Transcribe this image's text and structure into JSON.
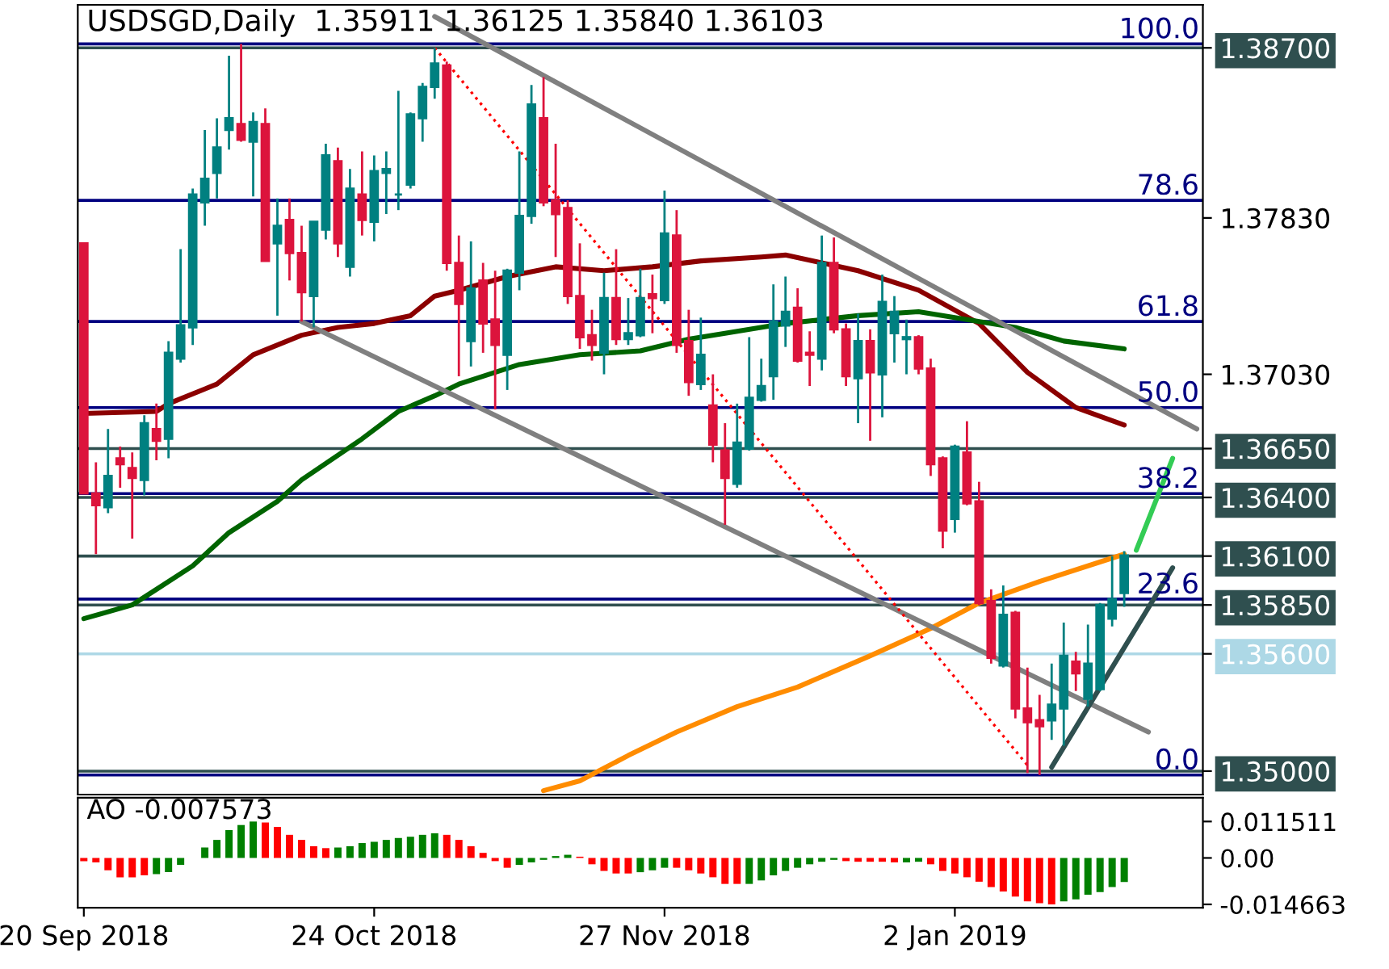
{
  "chart_data": [
    {
      "type": "candlestick",
      "title": "USDSGD,Daily  1.35911 1.36125 1.35840 1.36103",
      "tick_labels": "y",
      "categories": [
        null,
        null,
        null,
        null,
        null,
        null,
        null,
        null,
        null,
        null,
        null,
        null,
        null,
        null,
        null,
        null,
        null,
        null,
        null,
        null,
        null,
        null,
        null,
        null,
        null,
        null,
        null,
        null,
        null,
        null,
        null,
        null,
        null,
        null,
        null,
        null,
        null,
        null,
        null,
        null,
        null,
        null,
        null,
        null,
        null,
        null,
        null,
        null,
        null,
        null,
        null,
        null,
        null,
        null,
        null,
        null,
        null,
        null,
        null,
        null,
        null,
        null,
        null,
        null,
        null,
        null,
        null,
        null,
        null,
        null,
        null,
        null,
        null,
        null,
        null,
        null,
        null,
        null,
        null,
        null,
        null,
        null,
        null,
        null,
        null,
        null,
        null,
        null,
        null,
        null,
        null,
        null,
        null
      ],
      "ohlc": [
        [
          1.377,
          1.377,
          1.3642,
          1.3642
        ],
        [
          1.3642,
          1.3658,
          1.3611,
          1.3636
        ],
        [
          1.3635,
          1.3675,
          1.3632,
          1.3651
        ],
        [
          1.366,
          1.3666,
          1.3645,
          1.3657
        ],
        [
          1.3655,
          1.3663,
          1.3619,
          1.365
        ],
        [
          1.3649,
          1.3682,
          1.3641,
          1.3678
        ],
        [
          1.3675,
          1.3688,
          1.3659,
          1.3669
        ],
        [
          1.367,
          1.372,
          1.366,
          1.3714
        ],
        [
          1.3711,
          1.3767,
          1.3709,
          1.3728
        ],
        [
          1.3727,
          1.3798,
          1.3718,
          1.3795
        ],
        [
          1.3791,
          1.3828,
          1.3779,
          1.3803
        ],
        [
          1.3806,
          1.3834,
          1.3793,
          1.3819
        ],
        [
          1.3828,
          1.3866,
          1.3818,
          1.3834
        ],
        [
          1.3831,
          1.3872,
          1.3822,
          1.3823
        ],
        [
          1.3822,
          1.3837,
          1.3794,
          1.3832
        ],
        [
          1.3831,
          1.3839,
          1.3761,
          1.3761
        ],
        [
          1.377,
          1.3793,
          1.3733,
          1.3779
        ],
        [
          1.3782,
          1.3793,
          1.3751,
          1.3765
        ],
        [
          1.3765,
          1.3779,
          1.373,
          1.3745
        ],
        [
          1.3743,
          1.3781,
          1.3727,
          1.3781
        ],
        [
          1.3777,
          1.3821,
          1.3772,
          1.3815
        ],
        [
          1.3812,
          1.3819,
          1.3763,
          1.377
        ],
        [
          1.3758,
          1.3808,
          1.3753,
          1.3798
        ],
        [
          1.3795,
          1.3817,
          1.3774,
          1.3782
        ],
        [
          1.3781,
          1.3815,
          1.3771,
          1.3807
        ],
        [
          1.3806,
          1.3817,
          1.3785,
          1.3808
        ],
        [
          1.3795,
          1.3848,
          1.3787,
          1.3795
        ],
        [
          1.38,
          1.3837,
          1.3798,
          1.3836
        ],
        [
          1.3834,
          1.3852,
          1.3822,
          1.385
        ],
        [
          1.385,
          1.387,
          1.3844,
          1.3862
        ],
        [
          1.3861,
          1.3863,
          1.3756,
          1.376
        ],
        [
          1.376,
          1.3774,
          1.3702,
          1.3739
        ],
        [
          1.372,
          1.3771,
          1.3707,
          1.3747
        ],
        [
          1.3751,
          1.376,
          1.3714,
          1.3729
        ],
        [
          1.3731,
          1.3756,
          1.3685,
          1.3718
        ],
        [
          1.3713,
          1.3757,
          1.3695,
          1.3756
        ],
        [
          1.3755,
          1.3817,
          1.3746,
          1.3784
        ],
        [
          1.3784,
          1.3851,
          1.378,
          1.3841
        ],
        [
          1.3834,
          1.3855,
          1.3789,
          1.3791
        ],
        [
          1.3792,
          1.3821,
          1.3763,
          1.3785
        ],
        [
          1.3788,
          1.3792,
          1.3739,
          1.3743
        ],
        [
          1.3743,
          1.377,
          1.3716,
          1.3722
        ],
        [
          1.3723,
          1.3736,
          1.371,
          1.3718
        ],
        [
          1.3714,
          1.3755,
          1.3703,
          1.3742
        ],
        [
          1.3742,
          1.3767,
          1.3718,
          1.3721
        ],
        [
          1.3721,
          1.3742,
          1.3718,
          1.3724
        ],
        [
          1.3723,
          1.3757,
          1.3722,
          1.3742
        ],
        [
          1.3744,
          1.3754,
          1.3724,
          1.3742
        ],
        [
          1.3741,
          1.3797,
          1.3739,
          1.3775
        ],
        [
          1.3774,
          1.3787,
          1.3714,
          1.3718
        ],
        [
          1.372,
          1.3736,
          1.3692,
          1.3699
        ],
        [
          1.3698,
          1.3732,
          1.3695,
          1.3713
        ],
        [
          1.3687,
          1.3703,
          1.3658,
          1.3667
        ],
        [
          1.3664,
          1.3678,
          1.3626,
          1.365
        ],
        [
          1.3647,
          1.3688,
          1.3645,
          1.3668
        ],
        [
          1.3665,
          1.3722,
          1.3664,
          1.3691
        ],
        [
          1.369,
          1.3711,
          1.3689,
          1.3697
        ],
        [
          1.3702,
          1.3749,
          1.369,
          1.373
        ],
        [
          1.3728,
          1.3753,
          1.3717,
          1.3735
        ],
        [
          1.3737,
          1.3747,
          1.3709,
          1.371
        ],
        [
          1.3714,
          1.3725,
          1.3697,
          1.3713
        ],
        [
          1.3711,
          1.3774,
          1.3705,
          1.376
        ],
        [
          1.376,
          1.3773,
          1.3724,
          1.3726
        ],
        [
          1.3726,
          1.3729,
          1.3697,
          1.3702
        ],
        [
          1.3701,
          1.3734,
          1.3678,
          1.372
        ],
        [
          1.372,
          1.3726,
          1.3669,
          1.3704
        ],
        [
          1.3703,
          1.3754,
          1.3681,
          1.374
        ],
        [
          1.3724,
          1.3743,
          1.3709,
          1.3735
        ],
        [
          1.3721,
          1.3731,
          1.3703,
          1.3722
        ],
        [
          1.3722,
          1.3723,
          1.3703,
          1.3706
        ],
        [
          1.3706,
          1.3711,
          1.3651,
          1.3657
        ],
        [
          1.366,
          1.3661,
          1.3614,
          1.3623
        ],
        [
          1.3629,
          1.3667,
          1.3622,
          1.3666
        ],
        [
          1.3663,
          1.3679,
          1.3636,
          1.3637
        ],
        [
          1.3638,
          1.3648,
          1.3585,
          1.3586
        ],
        [
          1.3587,
          1.3593,
          1.3555,
          1.3558
        ],
        [
          1.3554,
          1.3595,
          1.3553,
          1.358
        ],
        [
          1.3581,
          1.3582,
          1.3527,
          1.3532
        ],
        [
          1.3532,
          1.3553,
          1.3499,
          1.3525
        ],
        [
          1.3526,
          1.3539,
          1.3498,
          1.3523
        ],
        [
          1.3526,
          1.3555,
          1.3516,
          1.3534
        ],
        [
          1.3532,
          1.3576,
          1.3513,
          1.3559
        ],
        [
          1.3556,
          1.3561,
          1.3541,
          1.355
        ],
        [
          1.3537,
          1.3575,
          1.3533,
          1.3555
        ],
        [
          1.3542,
          1.3586,
          1.3541,
          1.3585
        ],
        [
          1.3578,
          1.361,
          1.3574,
          1.3588
        ],
        [
          1.35911,
          1.36125,
          1.3584,
          1.36103
        ],
        null,
        null,
        null,
        null,
        null,
        null
      ],
      "colors": [
        "#dc143c",
        "#dc143c",
        "#008080",
        "#dc143c",
        "#dc143c",
        "#008080",
        "#dc143c",
        "#008080",
        "#008080",
        "#008080",
        "#008080",
        "#008080",
        "#008080",
        "#dc143c",
        "#008080",
        "#dc143c",
        "#008080",
        "#dc143c",
        "#dc143c",
        "#008080",
        "#008080",
        "#dc143c",
        "#008080",
        "#dc143c",
        "#008080",
        "#008080",
        "#008080",
        "#008080",
        "#008080",
        "#008080",
        "#dc143c",
        "#dc143c",
        "#008080",
        "#dc143c",
        "#dc143c",
        "#008080",
        "#008080",
        "#008080",
        "#dc143c",
        "#dc143c",
        "#dc143c",
        "#dc143c",
        "#dc143c",
        "#008080",
        "#dc143c",
        "#008080",
        "#008080",
        "#dc143c",
        "#008080",
        "#dc143c",
        "#dc143c",
        "#008080",
        "#dc143c",
        "#dc143c",
        "#008080",
        "#008080",
        "#008080",
        "#008080",
        "#008080",
        "#dc143c",
        "#dc143c",
        "#008080",
        "#dc143c",
        "#dc143c",
        "#008080",
        "#dc143c",
        "#008080",
        "#008080",
        "#008080",
        "#dc143c",
        "#dc143c",
        "#dc143c",
        "#008080",
        "#dc143c",
        "#dc143c",
        "#dc143c",
        "#008080",
        "#dc143c",
        "#dc143c",
        "#dc143c",
        "#008080",
        "#008080",
        "#dc143c",
        "#008080",
        "#008080",
        "#008080",
        "#008080",
        null,
        null,
        null,
        null,
        null,
        null
      ],
      "series": [
        {
          "type": "line",
          "color": "#8b0000",
          "values": [
            1.3683,
            null,
            null,
            null,
            null,
            null,
            1.3684,
            1.3688,
            null,
            null,
            null,
            1.3698,
            null,
            null,
            1.3713,
            null,
            null,
            null,
            1.3723,
            null,
            null,
            1.3727,
            null,
            null,
            1.3729,
            null,
            null,
            1.3733,
            null,
            1.3743,
            null,
            1.3746,
            null,
            null,
            null,
            1.3753,
            null,
            null,
            null,
            1.3758,
            null,
            null,
            null,
            1.3756,
            null,
            null,
            null,
            1.3758,
            null,
            null,
            null,
            1.3761,
            null,
            null,
            null,
            null,
            1.3763,
            null,
            1.3764,
            null,
            null,
            1.376,
            null,
            null,
            1.3756,
            null,
            null,
            null,
            null,
            1.3746,
            null,
            null,
            null,
            null,
            1.3729,
            null,
            null,
            null,
            1.3704,
            null,
            null,
            null,
            1.3686,
            null,
            null,
            null,
            1.3677,
            null,
            null,
            null,
            null,
            null,
            null
          ]
        },
        {
          "type": "line",
          "color": "#006400",
          "values": [
            1.3578,
            null,
            null,
            null,
            1.3585,
            null,
            1.3593,
            null,
            null,
            1.3605,
            null,
            null,
            1.3622,
            null,
            null,
            null,
            1.3638,
            null,
            1.3649,
            null,
            null,
            null,
            null,
            1.367,
            null,
            null,
            1.3684,
            null,
            null,
            1.3692,
            null,
            1.3698,
            null,
            null,
            null,
            null,
            1.3708,
            null,
            null,
            null,
            null,
            1.3713,
            null,
            null,
            null,
            null,
            1.3715,
            null,
            null,
            null,
            1.3721,
            null,
            null,
            1.3724,
            null,
            null,
            null,
            null,
            1.3729,
            null,
            null,
            null,
            null,
            null,
            1.3733,
            null,
            null,
            null,
            null,
            1.3735,
            null,
            null,
            null,
            1.3731,
            null,
            null,
            null,
            1.3727,
            null,
            null,
            null,
            1.372,
            null,
            null,
            null,
            null,
            1.3716,
            null,
            null,
            null,
            null,
            null,
            null
          ]
        },
        {
          "type": "line",
          "color": "#ff8c00",
          "values": [
            null,
            null,
            null,
            null,
            null,
            null,
            null,
            null,
            null,
            null,
            null,
            null,
            null,
            null,
            null,
            null,
            null,
            null,
            null,
            null,
            null,
            null,
            null,
            null,
            null,
            null,
            null,
            null,
            null,
            null,
            null,
            null,
            null,
            null,
            null,
            null,
            null,
            null,
            1.349,
            null,
            null,
            1.3495,
            null,
            null,
            null,
            1.3508,
            null,
            null,
            null,
            1.352,
            null,
            null,
            null,
            null,
            1.3533,
            null,
            null,
            null,
            null,
            1.3543,
            null,
            null,
            null,
            null,
            null,
            1.3559,
            null,
            null,
            null,
            null,
            1.3573,
            null,
            null,
            null,
            1.3586,
            null,
            null,
            null,
            null,
            1.3597,
            null,
            null,
            null,
            null,
            null,
            null,
            1.3611,
            null,
            null,
            null,
            null,
            null,
            null
          ]
        },
        {
          "type": "line",
          "color": "#808080",
          "values": [
            null,
            null,
            null,
            null,
            null,
            null,
            null,
            null,
            null,
            null,
            null,
            null,
            null,
            null,
            null,
            null,
            null,
            null,
            null,
            null,
            null,
            null,
            null,
            null,
            null,
            null,
            null,
            null,
            null,
            1.3886,
            null,
            null,
            null,
            null,
            null,
            null,
            null,
            null,
            null,
            null,
            null,
            null,
            null,
            null,
            null,
            null,
            null,
            null,
            null,
            null,
            null,
            null,
            null,
            null,
            null,
            null,
            null,
            null,
            null,
            null,
            null,
            null,
            null,
            null,
            null,
            null,
            null,
            null,
            null,
            null,
            null,
            null,
            null,
            null,
            null,
            null,
            null,
            null,
            null,
            null,
            null,
            null,
            null,
            null,
            null,
            null,
            null,
            null,
            null,
            null,
            null,
            null,
            1.3675
          ]
        },
        {
          "type": "line",
          "color": "#808080",
          "values": [
            null,
            null,
            null,
            null,
            null,
            null,
            null,
            null,
            null,
            null,
            null,
            null,
            null,
            null,
            null,
            null,
            null,
            null,
            1.373,
            null,
            null,
            null,
            null,
            null,
            null,
            null,
            null,
            null,
            null,
            null,
            null,
            null,
            null,
            null,
            null,
            null,
            null,
            null,
            null,
            null,
            null,
            null,
            null,
            null,
            null,
            null,
            null,
            null,
            null,
            null,
            null,
            null,
            null,
            null,
            null,
            null,
            null,
            null,
            null,
            null,
            null,
            null,
            null,
            null,
            null,
            null,
            null,
            null,
            null,
            null,
            null,
            null,
            null,
            null,
            null,
            null,
            null,
            null,
            null,
            null,
            null,
            null,
            null,
            null,
            null,
            null,
            null,
            null,
            1.352,
            null,
            null,
            null,
            null
          ]
        },
        {
          "type": "line",
          "color": "#2f4f4f",
          "values": [
            null,
            null,
            null,
            null,
            null,
            null,
            null,
            null,
            null,
            null,
            null,
            null,
            null,
            null,
            null,
            null,
            null,
            null,
            null,
            null,
            null,
            null,
            null,
            null,
            null,
            null,
            null,
            null,
            null,
            null,
            null,
            null,
            null,
            null,
            null,
            null,
            null,
            null,
            null,
            null,
            null,
            null,
            null,
            null,
            null,
            null,
            null,
            null,
            null,
            null,
            null,
            null,
            null,
            null,
            null,
            null,
            null,
            null,
            null,
            null,
            null,
            null,
            null,
            null,
            null,
            null,
            null,
            null,
            null,
            null,
            null,
            null,
            null,
            null,
            null,
            null,
            null,
            null,
            null,
            null,
            1.3502,
            null,
            null,
            null,
            null,
            null,
            null,
            null,
            null,
            null,
            1.3604,
            null,
            null
          ]
        },
        {
          "type": "line",
          "color": "#33cc55",
          "values": [
            null,
            null,
            null,
            null,
            null,
            null,
            null,
            null,
            null,
            null,
            null,
            null,
            null,
            null,
            null,
            null,
            null,
            null,
            null,
            null,
            null,
            null,
            null,
            null,
            null,
            null,
            null,
            null,
            null,
            null,
            null,
            null,
            null,
            null,
            null,
            null,
            null,
            null,
            null,
            null,
            null,
            null,
            null,
            null,
            null,
            null,
            null,
            null,
            null,
            null,
            null,
            null,
            null,
            null,
            null,
            null,
            null,
            null,
            null,
            null,
            null,
            null,
            null,
            null,
            null,
            null,
            null,
            null,
            null,
            null,
            null,
            null,
            null,
            null,
            null,
            null,
            null,
            null,
            null,
            null,
            null,
            null,
            null,
            null,
            null,
            null,
            null,
            1.3613,
            null,
            null,
            1.366,
            null,
            null
          ]
        },
        {
          "type": "line",
          "color": "#ff0000",
          "line_style": "dotted",
          "values": [
            null,
            null,
            null,
            null,
            null,
            null,
            null,
            null,
            null,
            null,
            null,
            null,
            null,
            null,
            null,
            null,
            null,
            null,
            null,
            null,
            null,
            null,
            null,
            null,
            null,
            null,
            null,
            null,
            null,
            1.387,
            null,
            null,
            null,
            null,
            null,
            null,
            null,
            null,
            null,
            null,
            null,
            null,
            null,
            null,
            null,
            null,
            null,
            null,
            null,
            null,
            null,
            null,
            null,
            null,
            null,
            null,
            null,
            null,
            null,
            null,
            null,
            null,
            null,
            null,
            null,
            null,
            null,
            null,
            null,
            null,
            null,
            null,
            null,
            null,
            null,
            null,
            null,
            null,
            1.3503,
            null,
            null,
            null,
            null,
            null,
            null,
            null,
            null,
            null,
            null,
            null,
            null,
            null,
            null
          ]
        }
      ],
      "ref_lines": [
        {
          "axis": "y",
          "value": 1.387,
          "color": "#2f4f4f"
        },
        {
          "axis": "y",
          "value": 1.3665,
          "color": "#2f4f4f"
        },
        {
          "axis": "y",
          "value": 1.364,
          "color": "#2f4f4f"
        },
        {
          "axis": "y",
          "value": 1.361,
          "color": "#2f4f4f"
        },
        {
          "axis": "y",
          "value": 1.3585,
          "color": "#2f4f4f"
        },
        {
          "axis": "y",
          "value": 1.356,
          "color": "#add8e6"
        },
        {
          "axis": "y",
          "value": 1.35,
          "color": "#2f4f4f"
        },
        {
          "axis": "y",
          "value": 1.3872,
          "color": "#000080"
        },
        {
          "axis": "y",
          "value": 1.3792,
          "color": "#000080"
        },
        {
          "axis": "y",
          "value": 1.373,
          "color": "#000080"
        },
        {
          "axis": "y",
          "value": 1.3686,
          "color": "#000080"
        },
        {
          "axis": "y",
          "value": 1.3642,
          "color": "#000080"
        },
        {
          "axis": "y",
          "value": 1.3588,
          "color": "#000080"
        },
        {
          "axis": "y",
          "value": 1.3498,
          "color": "#000080"
        }
      ],
      "annotations": [
        {
          "text": "100.0",
          "y": 1.3872
        },
        {
          "text": "78.6",
          "y": 1.3792
        },
        {
          "text": "61.8",
          "y": 1.373
        },
        {
          "text": "50.0",
          "y": 1.3686
        },
        {
          "text": "38.2",
          "y": 1.3642
        },
        {
          "text": "23.6",
          "y": 1.3588
        },
        {
          "text": "0.0",
          "y": 1.3498
        }
      ],
      "ylim": [
        1.3488,
        1.3892
      ],
      "yticks": [
        {
          "value": 1.387,
          "label": "1.38700"
        },
        {
          "value": 1.3783,
          "label": "1.37830"
        },
        {
          "value": 1.3703,
          "label": "1.37030"
        },
        {
          "value": 1.3665,
          "label": "1.36650"
        },
        {
          "value": 1.364,
          "label": "1.36400"
        },
        {
          "value": 1.361,
          "label": "1.36100"
        },
        {
          "value": 1.3585,
          "label": "1.35850"
        },
        {
          "value": 1.356,
          "label": "1.35600"
        },
        {
          "value": 1.35,
          "label": "1.35000"
        }
      ]
    },
    {
      "type": "bar",
      "title": "AO -0.007573",
      "categories": [
        "20 Sep 2018",
        null,
        null,
        null,
        null,
        null,
        null,
        null,
        null,
        null,
        null,
        null,
        null,
        null,
        null,
        null,
        null,
        null,
        null,
        null,
        null,
        null,
        null,
        null,
        "24 Oct 2018",
        null,
        null,
        null,
        null,
        null,
        null,
        null,
        null,
        null,
        null,
        null,
        null,
        null,
        null,
        null,
        null,
        null,
        null,
        null,
        null,
        null,
        null,
        null,
        "27 Nov 2018",
        null,
        null,
        null,
        null,
        null,
        null,
        null,
        null,
        null,
        null,
        null,
        null,
        null,
        null,
        null,
        null,
        null,
        null,
        null,
        null,
        null,
        null,
        null,
        "2 Jan 2019",
        null,
        null,
        null,
        null,
        null,
        null,
        null,
        null,
        null,
        null,
        null,
        null,
        null,
        null,
        null,
        null,
        null,
        null,
        null,
        null
      ],
      "values": [
        -0.001,
        -0.0014,
        -0.0039,
        -0.0061,
        -0.0061,
        -0.0055,
        -0.0051,
        -0.0045,
        -0.0022,
        null,
        0.0033,
        0.0057,
        0.0088,
        0.0104,
        0.0115,
        0.0112,
        0.0098,
        0.0073,
        0.0057,
        0.0037,
        0.0031,
        0.0033,
        0.0037,
        0.0047,
        0.0051,
        0.0057,
        0.0063,
        0.0067,
        0.0073,
        0.0078,
        0.0073,
        0.0057,
        0.0037,
        0.0016,
        -0.001,
        -0.0031,
        -0.0022,
        -0.0014,
        -0.0006,
        0.0006,
        0.001,
        0.0004,
        -0.002,
        -0.0041,
        -0.0049,
        -0.0049,
        -0.0045,
        -0.0039,
        -0.0031,
        -0.0031,
        -0.0039,
        -0.0049,
        -0.0061,
        -0.0082,
        -0.0082,
        -0.0082,
        -0.0071,
        -0.0055,
        -0.0041,
        -0.0031,
        -0.002,
        -0.0012,
        -0.0006,
        -0.001,
        -0.0012,
        -0.0012,
        -0.0012,
        -0.0014,
        -0.0014,
        -0.0012,
        -0.002,
        -0.0041,
        -0.0049,
        -0.0061,
        -0.0075,
        -0.0092,
        -0.0106,
        -0.0122,
        -0.0137,
        -0.0143,
        -0.0147,
        -0.0137,
        -0.0131,
        -0.0116,
        -0.0108,
        -0.0092,
        -0.0076,
        null,
        null,
        null,
        null,
        null,
        null
      ],
      "colors": [
        "#ff0000",
        "#ff0000",
        "#ff0000",
        "#ff0000",
        "#ff0000",
        "#ff0000",
        "#008000",
        "#008000",
        "#008000",
        "#008000",
        "#008000",
        "#008000",
        "#008000",
        "#008000",
        "#008000",
        "#ff0000",
        "#ff0000",
        "#ff0000",
        "#ff0000",
        "#ff0000",
        "#ff0000",
        "#008000",
        "#008000",
        "#008000",
        "#008000",
        "#008000",
        "#008000",
        "#008000",
        "#008000",
        "#008000",
        "#ff0000",
        "#ff0000",
        "#ff0000",
        "#ff0000",
        "#ff0000",
        "#ff0000",
        "#008000",
        "#008000",
        "#008000",
        "#008000",
        "#008000",
        "#ff0000",
        "#ff0000",
        "#ff0000",
        "#ff0000",
        "#ff0000",
        "#008000",
        "#008000",
        "#008000",
        "#ff0000",
        "#ff0000",
        "#ff0000",
        "#ff0000",
        "#ff0000",
        "#ff0000",
        "#008000",
        "#008000",
        "#008000",
        "#008000",
        "#008000",
        "#008000",
        "#008000",
        "#008000",
        "#ff0000",
        "#ff0000",
        "#ff0000",
        "#ff0000",
        "#ff0000",
        "#008000",
        "#008000",
        "#ff0000",
        "#ff0000",
        "#ff0000",
        "#ff0000",
        "#ff0000",
        "#ff0000",
        "#ff0000",
        "#ff0000",
        "#ff0000",
        "#ff0000",
        "#ff0000",
        "#008000",
        "#008000",
        "#008000",
        "#008000",
        "#008000",
        "#008000",
        null,
        null,
        null,
        null,
        null,
        null
      ],
      "ylim": [
        -0.0157,
        0.019
      ],
      "yticks": [
        0.011511,
        {
          "value": 0,
          "label": "0.00"
        },
        -0.014663
      ]
    }
  ]
}
